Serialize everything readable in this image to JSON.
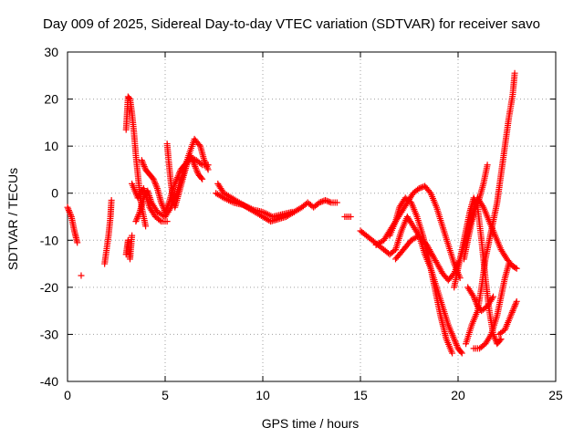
{
  "chart_data": {
    "type": "scatter",
    "title": "Day 009 of 2025, Sidereal Day-to-day VTEC variation (SDTVAR) for receiver savo",
    "xlabel": "GPS time / hours",
    "ylabel": "SDTVAR / TECUs",
    "xlim": [
      0,
      25
    ],
    "ylim": [
      -40,
      30
    ],
    "xticks": [
      0,
      5,
      10,
      15,
      20,
      25
    ],
    "yticks": [
      -40,
      -30,
      -20,
      -10,
      0,
      10,
      20,
      30
    ],
    "grid": true,
    "marker": "+",
    "color": "#ff0000",
    "series": [
      {
        "name": "s1",
        "points": [
          [
            0.0,
            -3
          ],
          [
            0.2,
            -5
          ],
          [
            0.35,
            -8
          ],
          [
            0.5,
            -10.5
          ]
        ]
      },
      {
        "name": "s2",
        "points": [
          [
            0.7,
            -17.5
          ]
        ]
      },
      {
        "name": "s3",
        "points": [
          [
            1.9,
            -15
          ],
          [
            2.1,
            -9
          ],
          [
            2.2,
            -5
          ],
          [
            2.25,
            -1.5
          ]
        ]
      },
      {
        "name": "s4",
        "points": [
          [
            3.0,
            -13
          ],
          [
            3.1,
            -10
          ],
          [
            3.2,
            -14
          ],
          [
            3.3,
            -9
          ]
        ]
      },
      {
        "name": "s5",
        "points": [
          [
            3.0,
            13.5
          ],
          [
            3.1,
            20.5
          ],
          [
            3.2,
            20
          ],
          [
            3.3,
            17
          ],
          [
            3.4,
            13
          ],
          [
            3.5,
            8
          ],
          [
            3.6,
            4
          ],
          [
            3.7,
            0
          ],
          [
            3.8,
            -3
          ],
          [
            3.9,
            -5
          ],
          [
            4.0,
            -7
          ]
        ]
      },
      {
        "name": "s6",
        "points": [
          [
            3.3,
            2
          ],
          [
            3.6,
            -1
          ],
          [
            3.9,
            1
          ],
          [
            4.2,
            -3
          ],
          [
            4.5,
            -5
          ],
          [
            4.8,
            -6
          ],
          [
            5.1,
            -6
          ]
        ]
      },
      {
        "name": "s7",
        "points": [
          [
            3.5,
            -6
          ],
          [
            3.7,
            -4
          ],
          [
            3.9,
            -1
          ],
          [
            4.1,
            0.5
          ],
          [
            4.3,
            -2
          ],
          [
            4.6,
            -4
          ],
          [
            5.0,
            -5
          ],
          [
            5.3,
            -3
          ],
          [
            5.6,
            0
          ],
          [
            5.9,
            4
          ],
          [
            6.2,
            8
          ],
          [
            6.5,
            11.5
          ],
          [
            6.8,
            10
          ],
          [
            7.0,
            7
          ],
          [
            7.2,
            5
          ]
        ]
      },
      {
        "name": "s8",
        "points": [
          [
            3.8,
            7
          ],
          [
            4.0,
            5
          ],
          [
            4.2,
            4
          ],
          [
            4.4,
            3
          ],
          [
            4.6,
            1
          ],
          [
            4.8,
            -2
          ],
          [
            5.0,
            -4
          ],
          [
            5.2,
            -2
          ],
          [
            5.4,
            1
          ],
          [
            5.6,
            3
          ],
          [
            5.8,
            5
          ],
          [
            6.0,
            6
          ],
          [
            6.3,
            7.5
          ],
          [
            6.6,
            7
          ],
          [
            6.9,
            6
          ],
          [
            7.2,
            6
          ]
        ]
      },
      {
        "name": "s9",
        "points": [
          [
            5.1,
            10.5
          ],
          [
            5.2,
            6
          ],
          [
            5.3,
            2
          ],
          [
            5.4,
            -1
          ],
          [
            5.5,
            -3
          ],
          [
            5.7,
            0
          ],
          [
            5.9,
            3
          ],
          [
            6.1,
            6
          ],
          [
            6.3,
            8
          ],
          [
            6.5,
            6
          ],
          [
            6.7,
            4
          ],
          [
            6.9,
            3
          ]
        ]
      },
      {
        "name": "s10",
        "points": [
          [
            7.7,
            2
          ],
          [
            8.0,
            0
          ],
          [
            8.4,
            -1
          ],
          [
            8.8,
            -2
          ],
          [
            9.2,
            -3
          ],
          [
            9.6,
            -4
          ],
          [
            10.0,
            -5
          ],
          [
            10.4,
            -6
          ],
          [
            10.8,
            -5.5
          ],
          [
            11.2,
            -5
          ],
          [
            11.6,
            -4
          ]
        ]
      },
      {
        "name": "s11",
        "points": [
          [
            7.6,
            0
          ],
          [
            8.0,
            -1
          ],
          [
            8.5,
            -2
          ],
          [
            9.0,
            -2.5
          ],
          [
            9.5,
            -3.5
          ],
          [
            10.0,
            -4
          ],
          [
            10.5,
            -5
          ],
          [
            11.0,
            -4.5
          ],
          [
            11.5,
            -4
          ]
        ]
      },
      {
        "name": "s12",
        "points": [
          [
            11.6,
            -4
          ],
          [
            12.0,
            -3
          ],
          [
            12.3,
            -2
          ],
          [
            12.6,
            -3
          ],
          [
            12.9,
            -2
          ],
          [
            13.2,
            -1.5
          ],
          [
            13.5,
            -2
          ],
          [
            13.8,
            -2
          ]
        ]
      },
      {
        "name": "s13",
        "points": [
          [
            14.2,
            -5
          ],
          [
            14.5,
            -5
          ]
        ]
      },
      {
        "name": "s14",
        "points": [
          [
            15.0,
            -8
          ],
          [
            15.3,
            -9
          ],
          [
            15.6,
            -10
          ],
          [
            15.9,
            -11
          ],
          [
            16.2,
            -12
          ],
          [
            16.5,
            -13
          ],
          [
            16.8,
            -12
          ],
          [
            17.1,
            -8
          ],
          [
            17.4,
            -5
          ],
          [
            17.7,
            -7
          ],
          [
            18.0,
            -9
          ],
          [
            18.3,
            -13
          ],
          [
            18.6,
            -16
          ],
          [
            18.9,
            -20
          ],
          [
            19.2,
            -24
          ],
          [
            19.5,
            -28
          ],
          [
            19.8,
            -31
          ],
          [
            20.0,
            -33
          ],
          [
            20.2,
            -34
          ]
        ]
      },
      {
        "name": "s15",
        "points": [
          [
            15.8,
            -11
          ],
          [
            16.2,
            -10
          ],
          [
            16.5,
            -8
          ],
          [
            16.8,
            -6
          ],
          [
            17.1,
            -4
          ],
          [
            17.4,
            -2
          ],
          [
            17.7,
            0
          ],
          [
            18.0,
            1
          ],
          [
            18.3,
            1.5
          ],
          [
            18.6,
            0
          ],
          [
            18.9,
            -3
          ],
          [
            19.2,
            -7
          ],
          [
            19.5,
            -11
          ],
          [
            19.8,
            -15
          ],
          [
            20.1,
            -18
          ]
        ]
      },
      {
        "name": "s16",
        "points": [
          [
            16.5,
            -9
          ],
          [
            16.8,
            -6
          ],
          [
            17.0,
            -3
          ],
          [
            17.3,
            -1
          ],
          [
            17.6,
            -2
          ],
          [
            17.9,
            -5
          ],
          [
            18.2,
            -9
          ],
          [
            18.5,
            -14
          ],
          [
            18.8,
            -20
          ],
          [
            19.1,
            -26
          ],
          [
            19.4,
            -31
          ],
          [
            19.7,
            -34
          ]
        ]
      },
      {
        "name": "s17",
        "points": [
          [
            16.8,
            -14
          ],
          [
            17.2,
            -12
          ],
          [
            17.6,
            -10
          ],
          [
            18.0,
            -9
          ],
          [
            18.4,
            -11
          ],
          [
            18.8,
            -14
          ],
          [
            19.2,
            -17
          ],
          [
            19.5,
            -18.5
          ],
          [
            19.8,
            -17
          ],
          [
            20.1,
            -14
          ],
          [
            20.4,
            -10
          ],
          [
            20.7,
            -5
          ],
          [
            21.0,
            -1
          ],
          [
            21.3,
            -3
          ],
          [
            21.6,
            -6
          ],
          [
            21.9,
            -9
          ],
          [
            22.2,
            -12
          ],
          [
            22.5,
            -14
          ],
          [
            22.8,
            -15.5
          ],
          [
            23.0,
            -16
          ]
        ]
      },
      {
        "name": "s18",
        "points": [
          [
            19.8,
            -20
          ],
          [
            20.0,
            -16
          ],
          [
            20.2,
            -12
          ],
          [
            20.4,
            -8
          ],
          [
            20.6,
            -4
          ],
          [
            20.8,
            -1
          ],
          [
            21.0,
            -3
          ],
          [
            21.2,
            -10
          ],
          [
            21.4,
            -18
          ],
          [
            21.6,
            -25
          ],
          [
            21.8,
            -30
          ],
          [
            22.0,
            -32
          ],
          [
            22.2,
            -31
          ]
        ]
      },
      {
        "name": "s19",
        "points": [
          [
            20.3,
            -14
          ],
          [
            20.5,
            -10
          ],
          [
            20.7,
            -6
          ],
          [
            20.9,
            -3
          ],
          [
            21.1,
            -1
          ],
          [
            21.3,
            2
          ],
          [
            21.5,
            6
          ]
        ]
      },
      {
        "name": "s20",
        "points": [
          [
            20.4,
            -32
          ],
          [
            20.7,
            -28
          ],
          [
            21.0,
            -25
          ],
          [
            21.2,
            -20
          ],
          [
            21.4,
            -14
          ],
          [
            21.6,
            -10
          ],
          [
            21.8,
            -6
          ],
          [
            22.0,
            -2
          ],
          [
            22.2,
            4
          ],
          [
            22.4,
            10
          ],
          [
            22.6,
            16
          ],
          [
            22.8,
            21
          ],
          [
            22.9,
            25.5
          ]
        ]
      },
      {
        "name": "s21",
        "points": [
          [
            20.8,
            -33
          ],
          [
            21.1,
            -33
          ],
          [
            21.4,
            -32
          ],
          [
            21.7,
            -30
          ],
          [
            22.0,
            -26
          ],
          [
            22.2,
            -22
          ],
          [
            22.4,
            -18
          ],
          [
            22.6,
            -15
          ]
        ]
      },
      {
        "name": "s22",
        "points": [
          [
            22.1,
            -30
          ],
          [
            22.4,
            -29
          ],
          [
            22.7,
            -26
          ],
          [
            22.9,
            -24
          ],
          [
            23.0,
            -23
          ]
        ]
      },
      {
        "name": "s23",
        "points": [
          [
            20.5,
            -20
          ],
          [
            20.8,
            -22
          ],
          [
            21.0,
            -24
          ],
          [
            21.2,
            -25
          ],
          [
            21.5,
            -24
          ],
          [
            21.8,
            -22
          ]
        ]
      }
    ]
  }
}
